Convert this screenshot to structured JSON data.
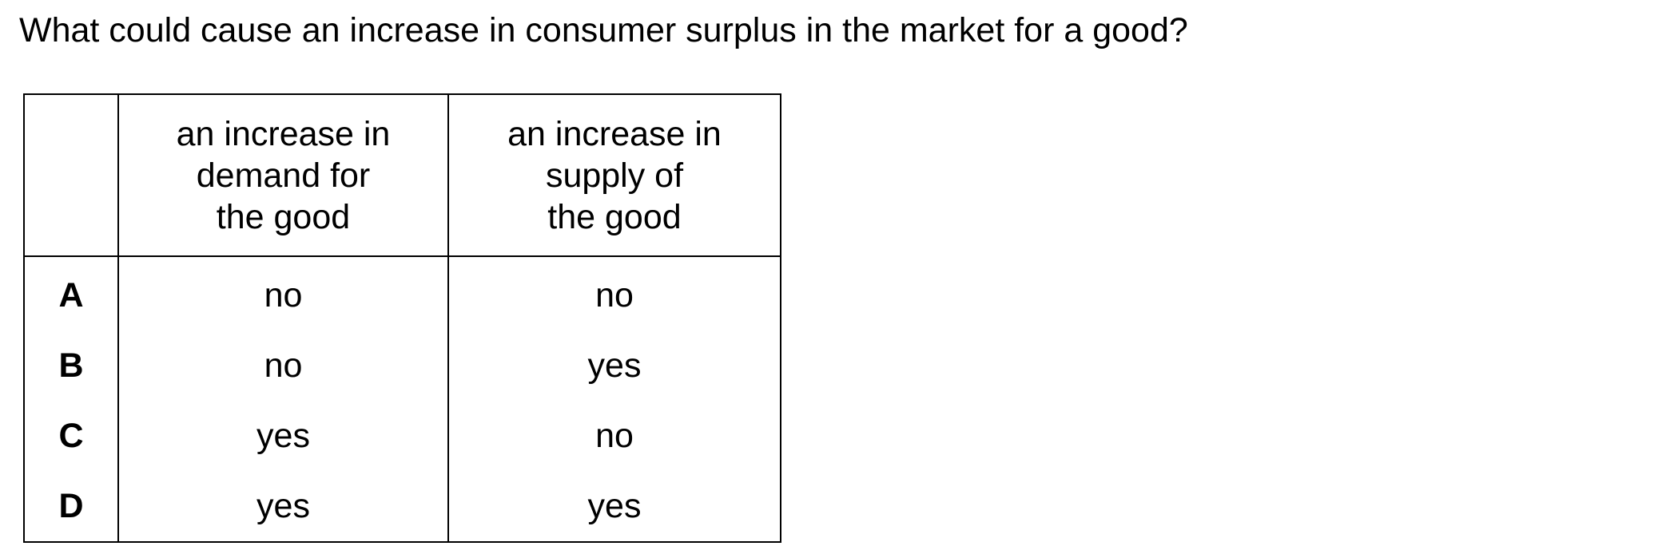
{
  "question": "What could cause an increase in consumer surplus in the market for a good?",
  "table": {
    "headers": [
      {
        "lines": [
          ""
        ]
      },
      {
        "lines": [
          "an increase in",
          "demand for",
          "the good"
        ]
      },
      {
        "lines": [
          "an increase in",
          "supply of",
          "the good"
        ]
      }
    ],
    "rows": [
      {
        "letter": "A",
        "demand": "no",
        "supply": "no"
      },
      {
        "letter": "B",
        "demand": "no",
        "supply": "yes"
      },
      {
        "letter": "C",
        "demand": "yes",
        "supply": "no"
      },
      {
        "letter": "D",
        "demand": "yes",
        "supply": "yes"
      }
    ]
  }
}
